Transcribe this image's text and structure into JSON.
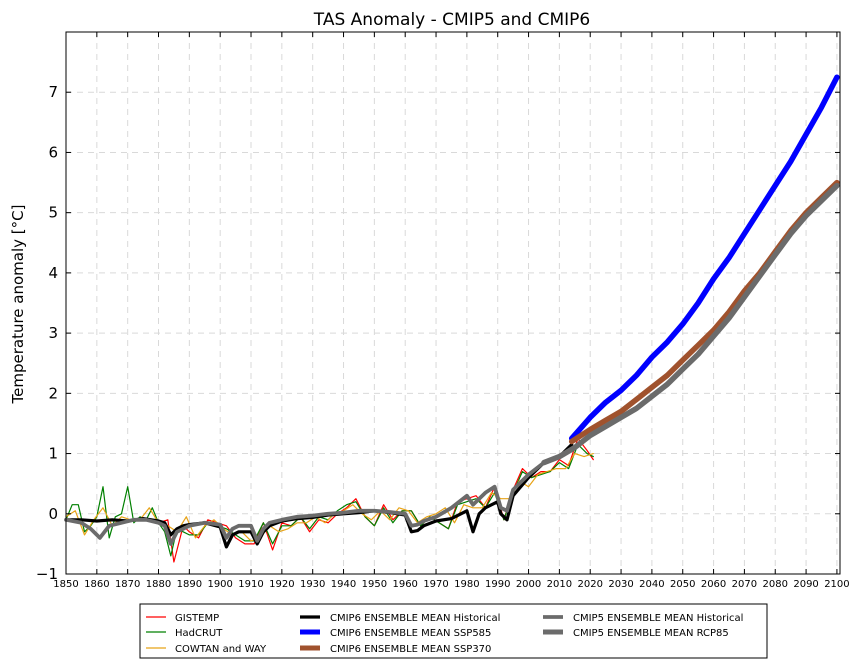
{
  "chart_data": {
    "type": "line",
    "title": "TAS Anomaly - CMIP5 and CMIP6",
    "xlabel": "",
    "ylabel": "Temperature anomaly [°C]",
    "xlim": [
      1850,
      2101
    ],
    "ylim": [
      -1,
      8
    ],
    "xticks": [
      1850,
      1860,
      1870,
      1880,
      1890,
      1900,
      1910,
      1920,
      1930,
      1940,
      1950,
      1960,
      1970,
      1980,
      1990,
      2000,
      2010,
      2020,
      2030,
      2040,
      2050,
      2060,
      2070,
      2080,
      2090,
      2100
    ],
    "yticks": [
      -1,
      0,
      1,
      2,
      3,
      4,
      5,
      6,
      7
    ],
    "grid": true,
    "legend_position": "bottom",
    "series": [
      {
        "name": "GISTEMP",
        "color": "#ff0000",
        "width": 1.2,
        "x": [
          1880,
          1883,
          1885,
          1888,
          1890,
          1893,
          1896,
          1899,
          1902,
          1905,
          1908,
          1911,
          1914,
          1917,
          1920,
          1923,
          1926,
          1929,
          1932,
          1935,
          1938,
          1941,
          1944,
          1947,
          1950,
          1953,
          1956,
          1959,
          1962,
          1965,
          1968,
          1971,
          1974,
          1977,
          1980,
          1983,
          1986,
          1989,
          1992,
          1995,
          1998,
          2001,
          2004,
          2007,
          2010,
          2013,
          2016,
          2019,
          2021
        ],
        "y": [
          -0.15,
          -0.1,
          -0.8,
          -0.2,
          -0.3,
          -0.4,
          -0.1,
          -0.15,
          -0.2,
          -0.4,
          -0.5,
          -0.5,
          -0.15,
          -0.6,
          -0.15,
          -0.2,
          -0.05,
          -0.3,
          -0.1,
          -0.15,
          0.0,
          0.1,
          0.25,
          -0.05,
          -0.2,
          0.15,
          -0.1,
          0.05,
          0.05,
          -0.2,
          -0.05,
          -0.15,
          -0.25,
          0.2,
          0.25,
          0.3,
          0.1,
          0.45,
          -0.1,
          0.4,
          0.75,
          0.6,
          0.7,
          0.7,
          0.9,
          0.8,
          1.25,
          1.05,
          0.9
        ]
      },
      {
        "name": "HadCRUT",
        "color": "#008000",
        "width": 1.2,
        "x": [
          1850,
          1852,
          1854,
          1856,
          1858,
          1860,
          1862,
          1864,
          1866,
          1868,
          1870,
          1872,
          1874,
          1876,
          1878,
          1880,
          1882,
          1884,
          1886,
          1888,
          1890,
          1893,
          1896,
          1899,
          1902,
          1905,
          1908,
          1911,
          1914,
          1917,
          1920,
          1923,
          1926,
          1929,
          1932,
          1935,
          1938,
          1941,
          1944,
          1947,
          1950,
          1953,
          1956,
          1959,
          1962,
          1965,
          1968,
          1971,
          1974,
          1977,
          1980,
          1983,
          1986,
          1989,
          1992,
          1995,
          1998,
          2001,
          2004,
          2007,
          2010,
          2013,
          2016,
          2019,
          2021
        ],
        "y": [
          -0.1,
          0.15,
          0.15,
          -0.3,
          -0.2,
          -0.05,
          0.45,
          -0.4,
          -0.05,
          0.0,
          0.45,
          -0.15,
          -0.05,
          -0.1,
          0.1,
          -0.15,
          -0.3,
          -0.7,
          -0.25,
          -0.3,
          -0.35,
          -0.35,
          -0.15,
          -0.2,
          -0.25,
          -0.35,
          -0.45,
          -0.45,
          -0.15,
          -0.5,
          -0.2,
          -0.2,
          -0.05,
          -0.25,
          -0.05,
          -0.1,
          0.05,
          0.15,
          0.2,
          -0.05,
          -0.2,
          0.1,
          -0.15,
          0.05,
          0.05,
          -0.2,
          -0.05,
          -0.15,
          -0.25,
          0.15,
          0.2,
          0.25,
          0.1,
          0.35,
          -0.1,
          0.35,
          0.7,
          0.6,
          0.65,
          0.7,
          0.85,
          0.75,
          1.15,
          1.0,
          0.95
        ]
      },
      {
        "name": "COWTAN and WAY",
        "color": "#e8a317",
        "width": 1.2,
        "x": [
          1850,
          1853,
          1856,
          1859,
          1862,
          1865,
          1868,
          1871,
          1874,
          1877,
          1880,
          1883,
          1886,
          1889,
          1892,
          1895,
          1898,
          1901,
          1904,
          1907,
          1910,
          1913,
          1916,
          1919,
          1922,
          1925,
          1928,
          1931,
          1934,
          1937,
          1940,
          1943,
          1946,
          1949,
          1952,
          1955,
          1958,
          1961,
          1964,
          1967,
          1970,
          1973,
          1976,
          1979,
          1982,
          1985,
          1988,
          1991,
          1994,
          1997,
          2000,
          2003,
          2006,
          2009,
          2012,
          2015,
          2018,
          2021
        ],
        "y": [
          -0.05,
          0.05,
          -0.35,
          -0.1,
          0.1,
          -0.2,
          -0.05,
          -0.1,
          -0.1,
          0.1,
          -0.15,
          -0.2,
          -0.3,
          -0.05,
          -0.4,
          -0.2,
          -0.1,
          -0.25,
          -0.35,
          -0.3,
          -0.45,
          -0.4,
          -0.2,
          -0.3,
          -0.25,
          -0.15,
          -0.15,
          -0.05,
          -0.15,
          0.0,
          0.05,
          0.15,
          0.0,
          -0.1,
          0.05,
          -0.1,
          0.1,
          0.05,
          -0.15,
          -0.05,
          0.0,
          0.1,
          -0.15,
          0.15,
          0.1,
          0.1,
          0.35,
          0.25,
          0.25,
          0.55,
          0.45,
          0.65,
          0.7,
          0.75,
          0.75,
          1.0,
          0.95,
          1.0
        ]
      },
      {
        "name": "CMIP6 ENSEMBLE MEAN Historical",
        "color": "#000000",
        "width": 3.2,
        "x": [
          1850,
          1855,
          1860,
          1865,
          1870,
          1875,
          1880,
          1882,
          1884,
          1886,
          1888,
          1890,
          1895,
          1900,
          1902,
          1904,
          1906,
          1910,
          1912,
          1914,
          1916,
          1920,
          1925,
          1930,
          1935,
          1940,
          1945,
          1950,
          1955,
          1960,
          1962,
          1964,
          1966,
          1970,
          1975,
          1980,
          1982,
          1984,
          1986,
          1990,
          1991,
          1993,
          1995,
          2000,
          2005,
          2010,
          2014
        ],
        "y": [
          -0.1,
          -0.1,
          -0.12,
          -0.1,
          -0.12,
          -0.08,
          -0.12,
          -0.15,
          -0.35,
          -0.25,
          -0.2,
          -0.18,
          -0.15,
          -0.22,
          -0.55,
          -0.35,
          -0.3,
          -0.3,
          -0.5,
          -0.3,
          -0.2,
          -0.12,
          -0.08,
          -0.06,
          -0.02,
          0.0,
          0.02,
          0.05,
          0.02,
          -0.02,
          -0.3,
          -0.28,
          -0.2,
          -0.12,
          -0.08,
          0.05,
          -0.3,
          0.0,
          0.1,
          0.2,
          0.0,
          -0.1,
          0.3,
          0.6,
          0.85,
          0.95,
          1.15
        ]
      },
      {
        "name": "CMIP6 ENSEMBLE MEAN SSP585",
        "color": "#0000ff",
        "width": 5.5,
        "x": [
          2014,
          2020,
          2025,
          2030,
          2035,
          2040,
          2045,
          2050,
          2055,
          2060,
          2065,
          2070,
          2075,
          2080,
          2085,
          2090,
          2095,
          2100
        ],
        "y": [
          1.25,
          1.6,
          1.85,
          2.05,
          2.3,
          2.6,
          2.85,
          3.15,
          3.5,
          3.9,
          4.25,
          4.65,
          5.05,
          5.45,
          5.85,
          6.3,
          6.75,
          7.25
        ]
      },
      {
        "name": "CMIP6 ENSEMBLE MEAN SSP370",
        "color": "#a0522d",
        "width": 5.5,
        "x": [
          2014,
          2020,
          2025,
          2030,
          2035,
          2040,
          2045,
          2050,
          2055,
          2060,
          2065,
          2070,
          2075,
          2080,
          2085,
          2090,
          2095,
          2100
        ],
        "y": [
          1.2,
          1.4,
          1.55,
          1.7,
          1.9,
          2.1,
          2.3,
          2.55,
          2.8,
          3.05,
          3.35,
          3.7,
          4.0,
          4.35,
          4.7,
          5.0,
          5.25,
          5.5
        ]
      },
      {
        "name": "CMIP5 ENSEMBLE MEAN Historical",
        "color": "#6b6b6b",
        "width": 3.8,
        "x": [
          1850,
          1855,
          1858,
          1861,
          1864,
          1868,
          1872,
          1876,
          1880,
          1882,
          1884,
          1886,
          1888,
          1890,
          1895,
          1900,
          1902,
          1904,
          1906,
          1910,
          1912,
          1914,
          1916,
          1920,
          1925,
          1930,
          1935,
          1940,
          1945,
          1950,
          1955,
          1960,
          1962,
          1964,
          1966,
          1970,
          1975,
          1980,
          1982,
          1984,
          1986,
          1989,
          1991,
          1993,
          1995,
          2000,
          2005
        ],
        "y": [
          -0.1,
          -0.15,
          -0.25,
          -0.4,
          -0.2,
          -0.15,
          -0.1,
          -0.1,
          -0.15,
          -0.2,
          -0.5,
          -0.3,
          -0.25,
          -0.2,
          -0.15,
          -0.18,
          -0.4,
          -0.25,
          -0.2,
          -0.2,
          -0.45,
          -0.25,
          -0.15,
          -0.1,
          -0.05,
          -0.03,
          0.0,
          0.02,
          0.05,
          0.05,
          0.03,
          0.0,
          -0.2,
          -0.18,
          -0.12,
          -0.05,
          0.1,
          0.3,
          0.15,
          0.25,
          0.35,
          0.45,
          0.1,
          0.05,
          0.4,
          0.65,
          0.85
        ]
      },
      {
        "name": "CMIP5 ENSEMBLE MEAN RCP85",
        "color": "#6b6b6b",
        "width": 5.5,
        "x": [
          2005,
          2010,
          2015,
          2020,
          2025,
          2030,
          2035,
          2040,
          2045,
          2050,
          2055,
          2060,
          2065,
          2070,
          2075,
          2080,
          2085,
          2090,
          2095,
          2100
        ],
        "y": [
          0.85,
          0.95,
          1.1,
          1.3,
          1.45,
          1.6,
          1.75,
          1.95,
          2.15,
          2.4,
          2.65,
          2.95,
          3.25,
          3.6,
          3.95,
          4.3,
          4.65,
          4.95,
          5.2,
          5.45
        ]
      }
    ]
  }
}
